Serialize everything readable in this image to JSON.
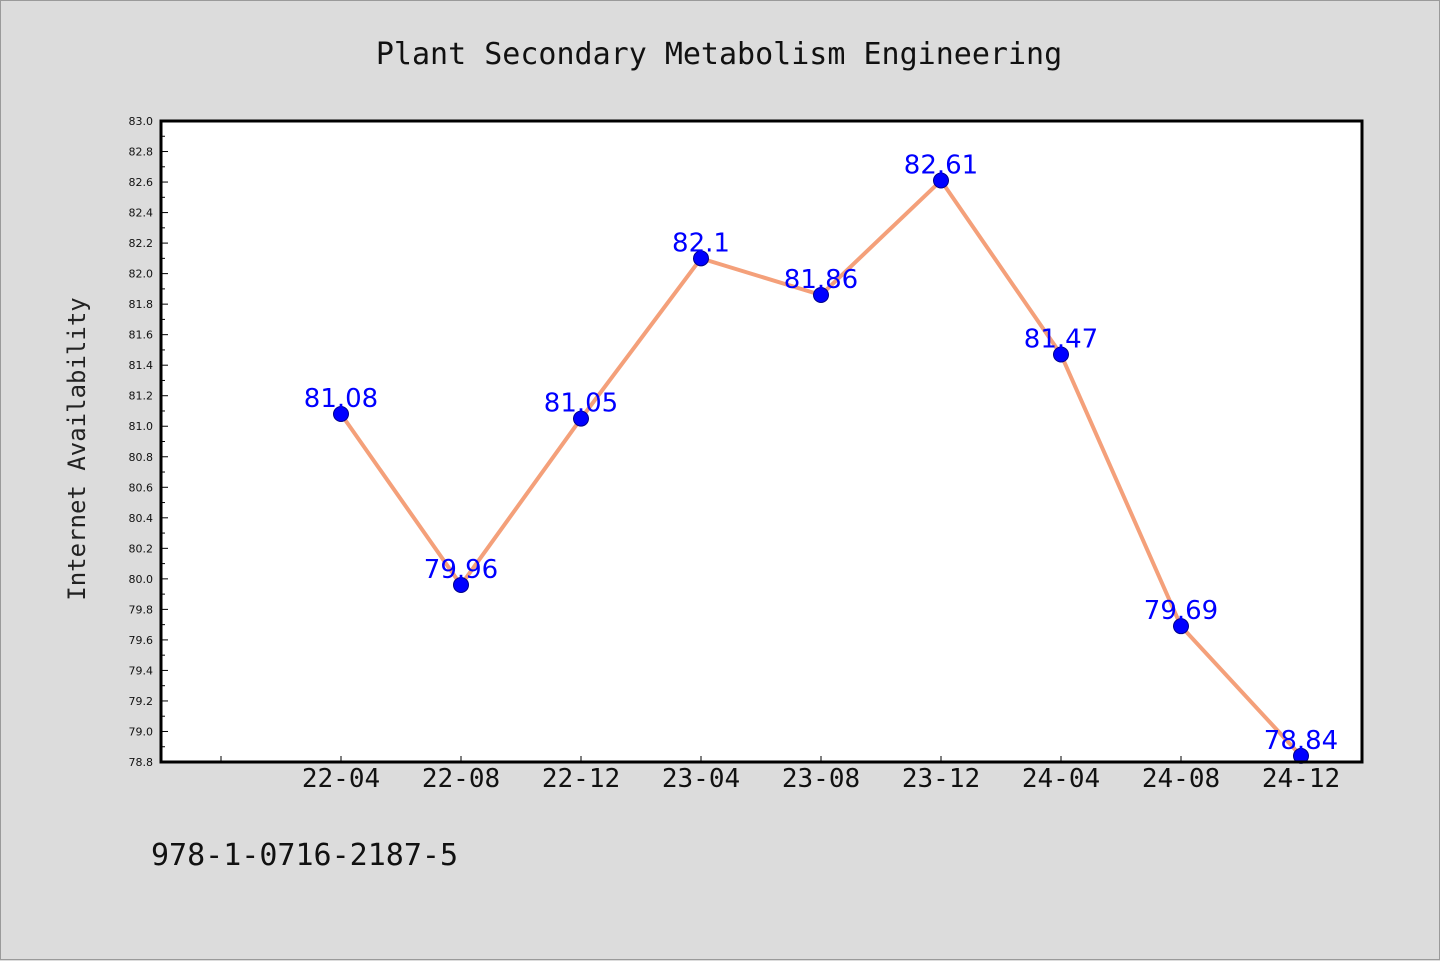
{
  "chart_data": {
    "type": "line",
    "title": "Plant Secondary Metabolism Engineering",
    "xlabel": "",
    "ylabel": "Internet Availability",
    "categories": [
      "22-04",
      "22-08",
      "22-12",
      "23-04",
      "23-08",
      "23-12",
      "24-04",
      "24-08",
      "24-12"
    ],
    "series": [
      {
        "values": [
          81.08,
          79.96,
          81.05,
          82.1,
          81.86,
          82.61,
          81.47,
          79.69,
          78.84
        ]
      }
    ],
    "data_labels": [
      "81.08",
      "79.96",
      "81.05",
      "82.1",
      "81.86",
      "82.61",
      "81.47",
      "79.69",
      "78.84"
    ],
    "ylim": [
      78.8,
      83.0
    ],
    "yticks": [
      78.8,
      79.0,
      79.2,
      79.4,
      79.6,
      79.8,
      80.0,
      80.2,
      80.4,
      80.6,
      80.8,
      81.0,
      81.2,
      81.4,
      81.6,
      81.8,
      82.0,
      82.2,
      82.4,
      82.6,
      82.8,
      83.0
    ],
    "ytick_labels": [
      "78.8",
      "79.0",
      "79.2",
      "79.4",
      "79.6",
      "79.8",
      "80.0",
      "80.2",
      "80.4",
      "80.6",
      "80.8",
      "81.0",
      "81.2",
      "81.4",
      "81.6",
      "81.8",
      "82.0",
      "82.2",
      "82.4",
      "82.6",
      "82.8",
      "83.0"
    ],
    "grid": false,
    "legend": "none",
    "colors": {
      "line": "#f4a07a",
      "marker": "#0000ff",
      "label": "#0000ff",
      "plot_bg": "#ffffff",
      "page_bg": "#dcdcdc"
    }
  },
  "footer": {
    "isbn": "978-1-0716-2187-5"
  }
}
